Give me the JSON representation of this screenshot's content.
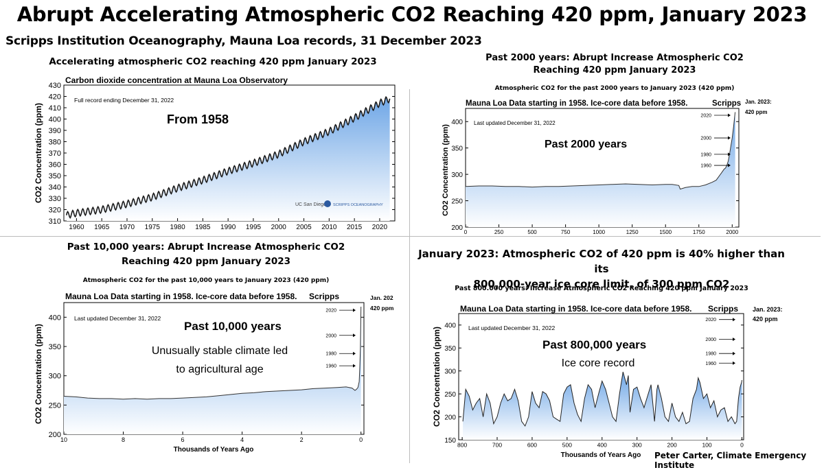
{
  "header": {
    "title": "Abrupt Accelerating Atmospheric CO2 Reaching 420 ppm, January 2023",
    "subtitle": "Scripps Institution Oceanography, Mauna Loa records, 31 December 2023",
    "credit": "Peter Carter, Climate Emergency Institute"
  },
  "panels": {
    "p1": {
      "heading": "Accelerating atmospheric CO2 reaching 420 ppm January 2023",
      "logo1": "UC San Diego",
      "logo2": "SCRIPPS OCEANOGRAPHY"
    },
    "p2": {
      "heading1": "Past 2000 years: Abrupt Increase Atmospheric CO2",
      "heading2": "Reaching 420 ppm January 2023",
      "subheading": "Atmospheric CO2 for the past 2000 years to January 2023 (420 ppm)",
      "side1": "Jan. 2023:",
      "side2": "420 ppm"
    },
    "p3": {
      "heading1": "Past 10,000 years: Abrupt Increase Atmospheric CO2",
      "heading2": "Reaching 420 ppm January 2023",
      "subheading": "Atmospheric CO2 for the past 10,000 years to January 2023 (420 ppm)",
      "side1": "Jan. 202",
      "side2": "420 ppm"
    },
    "p4": {
      "heading1": "January 2023: Atmospheric CO2 of 420 ppm is 40% higher than its",
      "heading2": "800,000-year ice core limit, of 300 ppm CO2",
      "subheading": "Past 800.000  years: Increase Atmospheric CO2  Reaching 420 ppm January 2023",
      "side1": "Jan. 2023:",
      "side2": "420 ppm"
    }
  },
  "chart_data": [
    {
      "type": "line",
      "title": "Carbon dioxide concentration at Mauna Loa Observatory",
      "note": "Full record ending December 31, 2022",
      "annotation": "From 1958",
      "ylabel": "CO2 Concentration (ppm)",
      "xlim": [
        1957.5,
        2023
      ],
      "ylim": [
        310,
        430
      ],
      "xticks": [
        1960,
        1965,
        1970,
        1975,
        1980,
        1985,
        1990,
        1995,
        2000,
        2005,
        2010,
        2015,
        2020
      ],
      "yticks": [
        310,
        320,
        330,
        340,
        350,
        360,
        370,
        380,
        390,
        400,
        410,
        420,
        430
      ],
      "x": [
        1958,
        1960,
        1965,
        1970,
        1975,
        1980,
        1985,
        1990,
        1995,
        2000,
        2005,
        2010,
        2015,
        2020,
        2022
      ],
      "y": [
        315,
        317,
        320,
        325,
        331,
        339,
        346,
        354,
        361,
        369,
        380,
        389,
        401,
        414,
        418
      ],
      "seasonal_amplitude": 3,
      "color": "#1a1a1a",
      "fill_top": "#7fb0e8",
      "fill_bottom": "#ffffff"
    },
    {
      "type": "line",
      "title": "Mauna Loa Data starting in 1958. Ice-core data before 1958.",
      "title_right": "Scripps",
      "note": "Last updated December 31, 2022",
      "annotation": "Past 2000 years",
      "ylabel": "CO2 Concentration (ppm)",
      "xlim": [
        0,
        2050
      ],
      "ylim": [
        200,
        425
      ],
      "xticks": [
        0,
        250,
        500,
        750,
        1000,
        1250,
        1500,
        1750,
        2000
      ],
      "yticks": [
        200,
        250,
        300,
        350,
        400
      ],
      "markers": [
        {
          "label": "2020",
          "y": 412
        },
        {
          "label": "2000",
          "y": 369
        },
        {
          "label": "1980",
          "y": 338
        },
        {
          "label": "1960",
          "y": 317
        }
      ],
      "x": [
        0,
        100,
        200,
        300,
        400,
        500,
        600,
        700,
        800,
        900,
        1000,
        1100,
        1200,
        1300,
        1400,
        1500,
        1550,
        1600,
        1610,
        1650,
        1700,
        1750,
        1800,
        1850,
        1880,
        1900,
        1920,
        1940,
        1950,
        1960,
        1970,
        1980,
        1990,
        2000,
        2010,
        2022
      ],
      "y": [
        277,
        278,
        278,
        277,
        277,
        276,
        277,
        277,
        278,
        279,
        280,
        281,
        282,
        281,
        280,
        281,
        281,
        279,
        272,
        275,
        277,
        277,
        280,
        285,
        289,
        296,
        303,
        310,
        312,
        317,
        325,
        338,
        354,
        369,
        389,
        418
      ],
      "color": "#333333",
      "fill_top": "#7fb0e8",
      "fill_bottom": "#ffffff"
    },
    {
      "type": "line",
      "title": "Mauna Loa Data starting in 1958. Ice-core data before 1958.",
      "title_right": "Scripps",
      "note": "Last updated December 31, 2022",
      "annotation": "Past 10,000 years",
      "annotation2": "Unusually stable climate led",
      "annotation3": "to agricultural age",
      "xlabel": "Thousands of Years Ago",
      "ylabel": "CO2 Concentration (ppm)",
      "xlim": [
        10,
        -0.1
      ],
      "ylim": [
        200,
        425
      ],
      "xticks": [
        10,
        8,
        6,
        4,
        2,
        0
      ],
      "yticks": [
        200,
        250,
        300,
        350,
        400
      ],
      "markers": [
        {
          "label": "2020",
          "y": 412
        },
        {
          "label": "2000",
          "y": 369
        },
        {
          "label": "1980",
          "y": 338
        },
        {
          "label": "1960",
          "y": 317
        }
      ],
      "x": [
        10,
        9.6,
        9.2,
        8.8,
        8.4,
        8,
        7.6,
        7.2,
        6.8,
        6.4,
        6,
        5.6,
        5.2,
        4.8,
        4.4,
        4,
        3.6,
        3.2,
        2.8,
        2.4,
        2,
        1.6,
        1.2,
        0.8,
        0.5,
        0.3,
        0.2,
        0.15,
        0.1,
        0.06,
        0.04,
        0.02,
        0
      ],
      "y": [
        265,
        264,
        262,
        261,
        261,
        260,
        261,
        260,
        261,
        261,
        262,
        263,
        264,
        266,
        268,
        270,
        271,
        273,
        274,
        275,
        276,
        278,
        279,
        280,
        281,
        279,
        275,
        277,
        280,
        290,
        312,
        345,
        418
      ],
      "color": "#333333",
      "fill_top": "#7fb0e8",
      "fill_bottom": "#ffffff"
    },
    {
      "type": "line",
      "title": "Mauna Loa Data starting in 1958. Ice-core data before 1958.",
      "title_right": "Scripps",
      "note": "Last updated December 31, 2022",
      "annotation": "Past 800,000 years",
      "annotation2": "Ice core record",
      "xlabel": "Thousands of Years Ago",
      "ylabel": "CO2 Concentration (ppm)",
      "xlim": [
        810,
        -5
      ],
      "ylim": [
        150,
        425
      ],
      "xticks": [
        800,
        700,
        600,
        500,
        400,
        300,
        200,
        100,
        0
      ],
      "yticks": [
        150,
        200,
        250,
        300,
        350,
        400
      ],
      "markers": [
        {
          "label": "2020",
          "y": 412
        },
        {
          "label": "2000",
          "y": 369
        },
        {
          "label": "1980",
          "y": 338
        },
        {
          "label": "1960",
          "y": 317
        }
      ],
      "x": [
        798,
        790,
        780,
        770,
        760,
        750,
        740,
        730,
        720,
        710,
        700,
        690,
        680,
        670,
        660,
        650,
        640,
        630,
        620,
        610,
        600,
        590,
        580,
        570,
        560,
        550,
        540,
        530,
        520,
        510,
        500,
        490,
        480,
        470,
        460,
        450,
        440,
        430,
        420,
        410,
        400,
        390,
        380,
        370,
        360,
        350,
        340,
        330,
        325,
        320,
        310,
        300,
        290,
        280,
        270,
        260,
        250,
        243,
        240,
        230,
        220,
        210,
        200,
        190,
        180,
        170,
        160,
        150,
        140,
        130,
        125,
        120,
        110,
        100,
        90,
        80,
        70,
        60,
        50,
        40,
        30,
        20,
        15,
        10,
        5,
        1,
        0
      ],
      "y": [
        190,
        260,
        245,
        215,
        230,
        240,
        200,
        250,
        230,
        185,
        200,
        230,
        250,
        235,
        240,
        260,
        235,
        190,
        180,
        200,
        255,
        230,
        220,
        255,
        250,
        235,
        200,
        195,
        190,
        250,
        265,
        270,
        230,
        205,
        190,
        240,
        270,
        260,
        220,
        250,
        278,
        260,
        230,
        200,
        190,
        250,
        298,
        270,
        290,
        210,
        260,
        265,
        240,
        220,
        245,
        270,
        190,
        260,
        270,
        240,
        200,
        190,
        230,
        200,
        190,
        210,
        185,
        190,
        240,
        260,
        285,
        275,
        240,
        250,
        220,
        235,
        200,
        215,
        220,
        190,
        200,
        185,
        190,
        240,
        265,
        275,
        280
      ],
      "color": "#222222",
      "fill_top": "#7fb0e8",
      "fill_bottom": "#ffffff"
    }
  ]
}
